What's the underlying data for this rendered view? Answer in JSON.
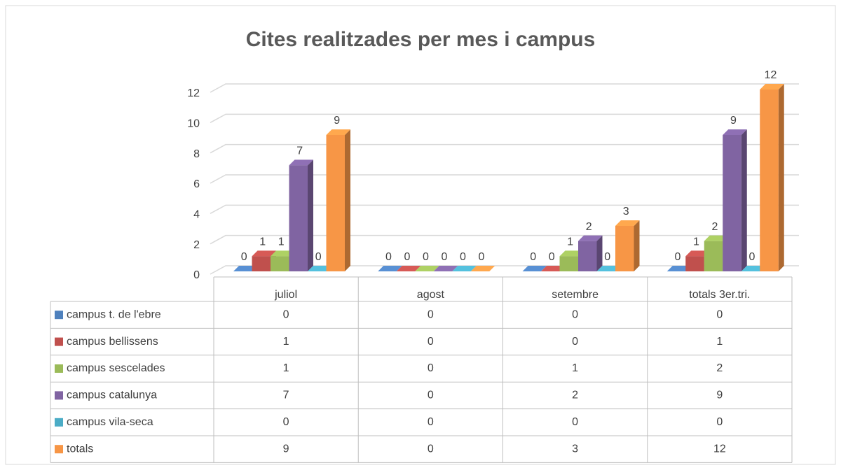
{
  "chart_data": {
    "type": "bar3d",
    "title": "Cites realitzades per mes i campus",
    "categories": [
      "juliol",
      "agost",
      "setembre",
      "totals 3er.tri."
    ],
    "series": [
      {
        "name": "campus t. de l'ebre",
        "color": "#4f81bd",
        "values": [
          0,
          0,
          0,
          0
        ]
      },
      {
        "name": "campus bellissens",
        "color": "#c0504d",
        "values": [
          1,
          0,
          0,
          1
        ]
      },
      {
        "name": "campus sescelades",
        "color": "#9bbb59",
        "values": [
          1,
          0,
          1,
          2
        ]
      },
      {
        "name": "campus catalunya",
        "color": "#8064a2",
        "values": [
          7,
          0,
          2,
          9
        ]
      },
      {
        "name": "campus vila-seca",
        "color": "#4bacc6",
        "values": [
          0,
          0,
          0,
          0
        ]
      },
      {
        "name": "totals",
        "color": "#f79646",
        "values": [
          9,
          0,
          3,
          12
        ]
      }
    ],
    "ylim": [
      0,
      12
    ],
    "yticks": [
      0,
      2,
      4,
      6,
      8,
      10,
      12
    ],
    "grid": true,
    "data_table": true
  }
}
